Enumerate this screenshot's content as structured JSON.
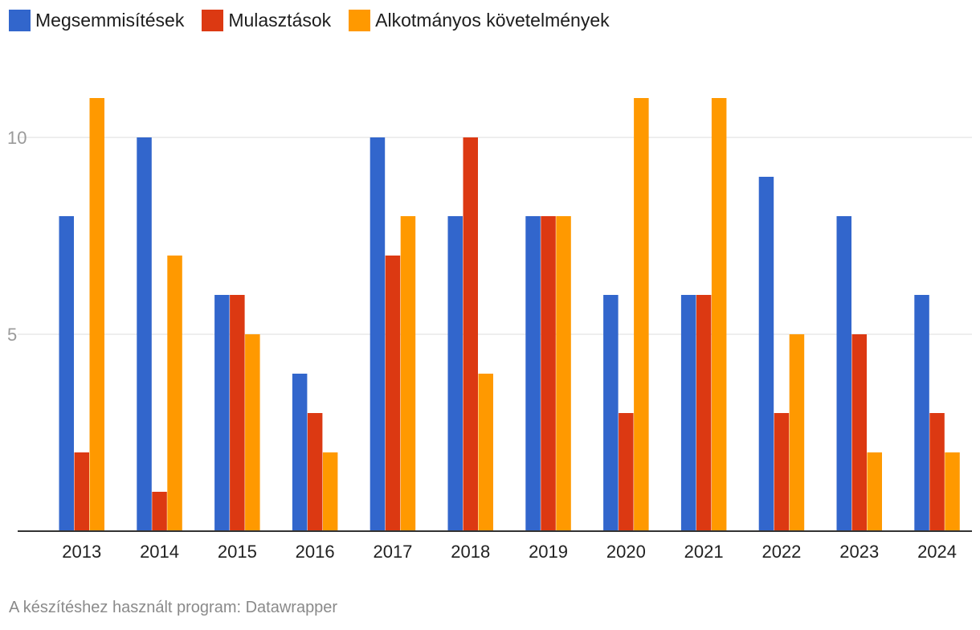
{
  "chart_data": {
    "type": "bar",
    "categories": [
      "2013",
      "2014",
      "2015",
      "2016",
      "2017",
      "2018",
      "2019",
      "2020",
      "2021",
      "2022",
      "2023",
      "2024"
    ],
    "series": [
      {
        "name": "Megsemmisítések",
        "color": "#3266cc",
        "values": [
          8,
          10,
          6,
          4,
          10,
          8,
          8,
          6,
          6,
          9,
          8,
          6
        ]
      },
      {
        "name": "Mulasztások",
        "color": "#dc3912",
        "values": [
          2,
          1,
          6,
          3,
          7,
          10,
          8,
          3,
          6,
          3,
          5,
          3
        ]
      },
      {
        "name": "Alkotmányos követelmények",
        "color": "#ff9900",
        "values": [
          11,
          7,
          5,
          2,
          8,
          4,
          8,
          11,
          11,
          5,
          2,
          2
        ]
      }
    ],
    "yticks": [
      5,
      10
    ],
    "ylim": [
      0,
      11
    ],
    "grid": true,
    "legend": "top-left"
  },
  "footer": "A készítéshez használt program: Datawrapper"
}
